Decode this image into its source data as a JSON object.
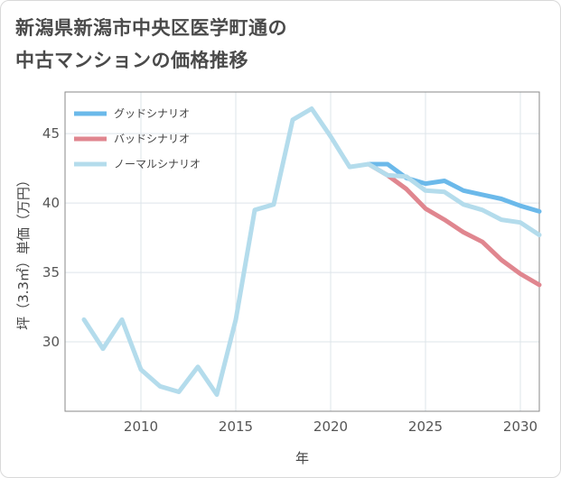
{
  "title_line1": "新潟県新潟市中央区医学町通の",
  "title_line2": "中古マンションの価格推移",
  "chart_data": {
    "type": "line",
    "xlabel": "年",
    "ylabel": "坪（3.3㎡）単価（万円）",
    "xlim": [
      2006,
      2031
    ],
    "ylim": [
      25,
      48
    ],
    "x_ticks": [
      2010,
      2015,
      2020,
      2025,
      2030
    ],
    "y_ticks": [
      30,
      35,
      40,
      45
    ],
    "grid": true,
    "legend_position": "top-left",
    "series": [
      {
        "name": "グッドシナリオ",
        "color": "#6bb9ea",
        "x": [
          2022,
          2023,
          2024,
          2025,
          2026,
          2027,
          2028,
          2029,
          2030,
          2031
        ],
        "y": [
          42.8,
          42.8,
          41.8,
          41.4,
          41.6,
          40.9,
          40.6,
          40.3,
          39.8,
          39.4
        ]
      },
      {
        "name": "バッドシナリオ",
        "color": "#e0868f",
        "x": [
          2022,
          2023,
          2024,
          2025,
          2026,
          2027,
          2028,
          2029,
          2030,
          2031
        ],
        "y": [
          42.8,
          42.0,
          41.0,
          39.6,
          38.8,
          37.9,
          37.2,
          35.9,
          34.9,
          34.1
        ]
      },
      {
        "name": "ノーマルシナリオ",
        "color": "#b4dcec",
        "x": [
          2007,
          2008,
          2009,
          2010,
          2011,
          2012,
          2013,
          2014,
          2015,
          2016,
          2017,
          2018,
          2019,
          2020,
          2021,
          2022,
          2023,
          2024,
          2025,
          2026,
          2027,
          2028,
          2029,
          2030,
          2031
        ],
        "y": [
          31.6,
          29.5,
          31.6,
          28.0,
          26.8,
          26.4,
          28.2,
          26.2,
          31.6,
          39.5,
          39.9,
          46.0,
          46.8,
          44.8,
          42.6,
          42.8,
          42.0,
          41.9,
          40.9,
          40.8,
          39.9,
          39.5,
          38.8,
          38.6,
          37.7
        ]
      }
    ]
  }
}
